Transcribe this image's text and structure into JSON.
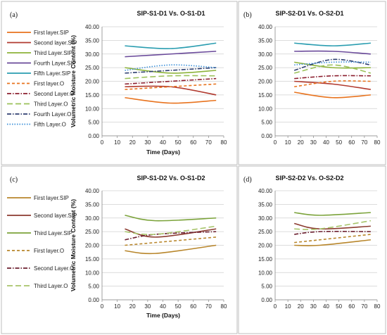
{
  "chart_data": [
    {
      "type": "line",
      "panel_label": "(a)",
      "title": "SIP-S1-D1 Vs. O-S1-D1",
      "xlabel": "Time (Days)",
      "ylabel": "Volumetric Moisture Content (%)",
      "xlim": [
        0,
        80
      ],
      "ylim": [
        0,
        40
      ],
      "x_ticks": [
        "0",
        "10",
        "20",
        "30",
        "40",
        "50",
        "60",
        "70",
        "80"
      ],
      "y_ticks": [
        "0.00",
        "5.00",
        "10.00",
        "15.00",
        "20.00",
        "25.00",
        "30.00",
        "35.00",
        "40.00"
      ],
      "legend_position": "left",
      "series": [
        {
          "name": "First layer.SIP",
          "color": "#E8731E",
          "dash": "solid",
          "x": [
            15,
            45,
            75
          ],
          "y": [
            14,
            12,
            13
          ]
        },
        {
          "name": "Second layer.SIP",
          "color": "#B13A2F",
          "dash": "solid",
          "x": [
            15,
            45,
            75
          ],
          "y": [
            18,
            18,
            15
          ]
        },
        {
          "name": "Third Layer.SIP",
          "color": "#8DB33A",
          "dash": "solid",
          "x": [
            15,
            45,
            75
          ],
          "y": [
            25,
            23,
            24
          ]
        },
        {
          "name": "Fourth Layer.SIP",
          "color": "#6A4A9A",
          "dash": "solid",
          "x": [
            15,
            45,
            75
          ],
          "y": [
            29,
            30,
            31
          ]
        },
        {
          "name": "Fifth Layer.SIP",
          "color": "#2A9DB0",
          "dash": "solid",
          "x": [
            15,
            45,
            75
          ],
          "y": [
            33,
            32,
            34
          ]
        },
        {
          "name": "First layer.O",
          "color": "#E8731E",
          "dash": "dash",
          "x": [
            15,
            45,
            75
          ],
          "y": [
            17,
            18,
            19
          ]
        },
        {
          "name": "Second Layer.O",
          "color": "#8B1E2E",
          "dash": "dashdot",
          "x": [
            15,
            45,
            75
          ],
          "y": [
            19,
            20,
            21
          ]
        },
        {
          "name": "Third Layer.O",
          "color": "#9BC15A",
          "dash": "longdash",
          "x": [
            15,
            45,
            75
          ],
          "y": [
            21,
            22,
            22
          ]
        },
        {
          "name": "Fourth Layer.O",
          "color": "#2E3F70",
          "dash": "dashdot",
          "x": [
            15,
            45,
            75
          ],
          "y": [
            23,
            24,
            25
          ]
        },
        {
          "name": "Fifth Layer.O",
          "color": "#3A8FD8",
          "dash": "dot",
          "x": [
            15,
            45,
            75
          ],
          "y": [
            24,
            26,
            25
          ]
        }
      ]
    },
    {
      "type": "line",
      "panel_label": "(b)",
      "title": "SIP-S2-D1 Vs. O-S2-D1",
      "xlabel": "",
      "ylabel": "",
      "xlim": [
        0,
        80
      ],
      "ylim": [
        0,
        40
      ],
      "x_ticks": [
        "0",
        "10",
        "20",
        "30",
        "40",
        "50",
        "60",
        "70",
        "80"
      ],
      "y_ticks": [
        "0.00",
        "5.00",
        "10.00",
        "15.00",
        "20.00",
        "25.00",
        "30.00",
        "35.00",
        "40.00"
      ],
      "series": [
        {
          "name": "First layer.SIP",
          "color": "#E8731E",
          "dash": "solid",
          "x": [
            15,
            45,
            75
          ],
          "y": [
            16,
            14,
            15
          ]
        },
        {
          "name": "Second layer.SIP",
          "color": "#B13A2F",
          "dash": "solid",
          "x": [
            15,
            45,
            75
          ],
          "y": [
            20,
            19,
            17
          ]
        },
        {
          "name": "Third Layer.SIP",
          "color": "#8DB33A",
          "dash": "solid",
          "x": [
            15,
            45,
            75
          ],
          "y": [
            27,
            25,
            25
          ]
        },
        {
          "name": "Fourth Layer.SIP",
          "color": "#6A4A9A",
          "dash": "solid",
          "x": [
            15,
            45,
            75
          ],
          "y": [
            31,
            31,
            30
          ]
        },
        {
          "name": "Fifth Layer.SIP",
          "color": "#2A9DB0",
          "dash": "solid",
          "x": [
            15,
            45,
            75
          ],
          "y": [
            34,
            33,
            34
          ]
        },
        {
          "name": "First layer.O",
          "color": "#E8731E",
          "dash": "dash",
          "x": [
            15,
            45,
            75
          ],
          "y": [
            18,
            20,
            20
          ]
        },
        {
          "name": "Second Layer.O",
          "color": "#8B1E2E",
          "dash": "dashdot",
          "x": [
            15,
            45,
            75
          ],
          "y": [
            21,
            22,
            22
          ]
        },
        {
          "name": "Third Layer.O",
          "color": "#9BC15A",
          "dash": "longdash",
          "x": [
            15,
            45,
            75
          ],
          "y": [
            23,
            26,
            23
          ]
        },
        {
          "name": "Fourth Layer.O",
          "color": "#2E3F70",
          "dash": "dashdot",
          "x": [
            15,
            45,
            75
          ],
          "y": [
            24,
            28,
            26
          ]
        },
        {
          "name": "Fifth Layer.O",
          "color": "#3A8FD8",
          "dash": "dot",
          "x": [
            15,
            45,
            75
          ],
          "y": [
            26,
            27,
            27
          ]
        }
      ]
    },
    {
      "type": "line",
      "panel_label": "(c)",
      "title": "SIP-S1-D2 Vs. O-S1-D2",
      "xlabel": "Time (Days)",
      "ylabel": "Volumetric Moisture Content (%)",
      "xlim": [
        0,
        80
      ],
      "ylim": [
        0,
        40
      ],
      "x_ticks": [
        "0",
        "10",
        "20",
        "30",
        "40",
        "50",
        "60",
        "70",
        "80"
      ],
      "y_ticks": [
        "0.00",
        "5.00",
        "10.00",
        "15.00",
        "20.00",
        "25.00",
        "30.00",
        "35.00",
        "40.00"
      ],
      "legend_position": "left",
      "series": [
        {
          "name": "First layer.SIP",
          "color": "#B8862B",
          "dash": "solid",
          "x": [
            15,
            35,
            75
          ],
          "y": [
            18,
            17,
            20
          ]
        },
        {
          "name": "Second layer.SIP",
          "color": "#8B3A2F",
          "dash": "solid",
          "x": [
            15,
            35,
            75
          ],
          "y": [
            26,
            23,
            26
          ]
        },
        {
          "name": "Third Layer.SIP",
          "color": "#7BA33A",
          "dash": "solid",
          "x": [
            15,
            35,
            75
          ],
          "y": [
            31,
            29,
            30
          ]
        },
        {
          "name": "First layer.O",
          "color": "#B8862B",
          "dash": "dash",
          "x": [
            15,
            35,
            75
          ],
          "y": [
            20,
            21,
            23
          ]
        },
        {
          "name": "Second Layer.O",
          "color": "#6B1E2E",
          "dash": "dashdot",
          "x": [
            15,
            35,
            75
          ],
          "y": [
            22,
            24,
            25
          ]
        },
        {
          "name": "Third Layer.O",
          "color": "#A7C46A",
          "dash": "longdash",
          "x": [
            15,
            35,
            75
          ],
          "y": [
            25,
            24,
            27
          ]
        }
      ]
    },
    {
      "type": "line",
      "panel_label": "(d)",
      "title": "SIP-S2-D2 Vs. O-S2-D2",
      "xlabel": "",
      "ylabel": "",
      "xlim": [
        0,
        80
      ],
      "ylim": [
        0,
        40
      ],
      "x_ticks": [
        "0",
        "10",
        "20",
        "30",
        "40",
        "50",
        "60",
        "70",
        "80"
      ],
      "y_ticks": [
        "0.00",
        "5.00",
        "10.00",
        "15.00",
        "20.00",
        "25.00",
        "30.00",
        "35.00",
        "40.00"
      ],
      "series": [
        {
          "name": "First layer.SIP",
          "color": "#B8862B",
          "dash": "solid",
          "x": [
            15,
            35,
            75
          ],
          "y": [
            20,
            20,
            22
          ]
        },
        {
          "name": "Second layer.SIP",
          "color": "#8B3A2F",
          "dash": "solid",
          "x": [
            15,
            35,
            75
          ],
          "y": [
            28,
            26,
            27
          ]
        },
        {
          "name": "Third Layer.SIP",
          "color": "#7BA33A",
          "dash": "solid",
          "x": [
            15,
            35,
            75
          ],
          "y": [
            32,
            31,
            32
          ]
        },
        {
          "name": "First layer.O",
          "color": "#B8862B",
          "dash": "dash",
          "x": [
            15,
            35,
            75
          ],
          "y": [
            21,
            22,
            24
          ]
        },
        {
          "name": "Second Layer.O",
          "color": "#6B1E2E",
          "dash": "dashdot",
          "x": [
            15,
            35,
            75
          ],
          "y": [
            24,
            25,
            25
          ]
        },
        {
          "name": "Third Layer.O",
          "color": "#A7C46A",
          "dash": "longdash",
          "x": [
            15,
            35,
            75
          ],
          "y": [
            26,
            26,
            29
          ]
        }
      ]
    }
  ]
}
